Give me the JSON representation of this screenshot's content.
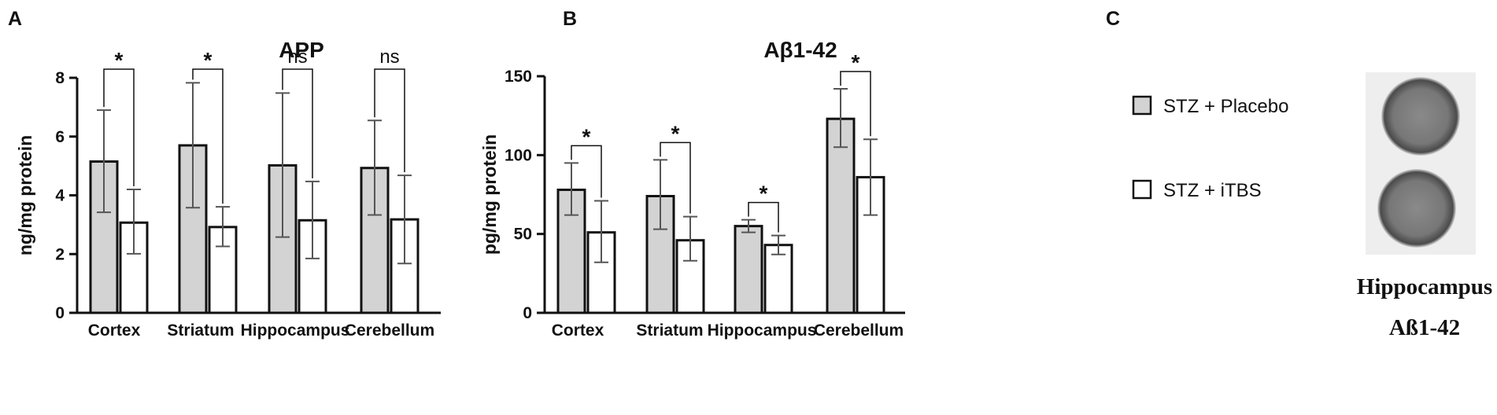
{
  "panels": {
    "a": "A",
    "b": "B",
    "c": "C"
  },
  "colors": {
    "placebo_fill": "#d3d3d3",
    "itbs_fill": "#ffffff",
    "stroke": "#111111",
    "error_bar": "#555555"
  },
  "legend": {
    "items": [
      {
        "label": "STZ + Placebo",
        "fill": "#d3d3d3"
      },
      {
        "label": "STZ + iTBS",
        "fill": "#ffffff"
      }
    ]
  },
  "blot": {
    "caption_line1": "Hippocampus",
    "caption_line2": "Aß1-42"
  },
  "chart_data": [
    {
      "type": "bar",
      "title": "APP",
      "ylabel": "ng/mg protein",
      "xlabel": "",
      "ylim": [
        0,
        8
      ],
      "yticks": [
        0,
        2,
        4,
        6,
        8
      ],
      "grid": false,
      "categories": [
        "Cortex",
        "Striatum",
        "Hippocampus",
        "Cerebellum"
      ],
      "series": [
        {
          "name": "STZ + Placebo",
          "values": [
            5.15,
            5.7,
            5.02,
            4.93
          ],
          "err_low": [
            3.42,
            3.58,
            2.58,
            3.33
          ],
          "err_high": [
            6.9,
            7.83,
            7.48,
            6.55
          ]
        },
        {
          "name": "STZ + iTBS",
          "values": [
            3.07,
            2.92,
            3.15,
            3.18
          ],
          "err_low": [
            2.01,
            2.26,
            1.85,
            1.68
          ],
          "err_high": [
            4.2,
            3.61,
            4.47,
            4.68
          ]
        }
      ],
      "significance": [
        "*",
        "*",
        "ns",
        "ns"
      ]
    },
    {
      "type": "bar",
      "title": "Aβ1-42",
      "ylabel": "pg/mg protein",
      "xlabel": "",
      "ylim": [
        0,
        150
      ],
      "yticks": [
        0,
        50,
        100,
        150
      ],
      "grid": false,
      "categories": [
        "Cortex",
        "Striatum",
        "Hippocampus",
        "Cerebellum"
      ],
      "series": [
        {
          "name": "STZ + Placebo",
          "values": [
            78,
            74,
            55,
            123
          ],
          "err_low": [
            62,
            53,
            51,
            105
          ],
          "err_high": [
            95,
            97,
            59,
            142
          ]
        },
        {
          "name": "STZ + iTBS",
          "values": [
            51,
            46,
            43,
            86
          ],
          "err_low": [
            32,
            33,
            37,
            62
          ],
          "err_high": [
            71,
            61,
            49,
            110
          ]
        }
      ],
      "significance": [
        "*",
        "*",
        "*",
        "*"
      ]
    }
  ]
}
